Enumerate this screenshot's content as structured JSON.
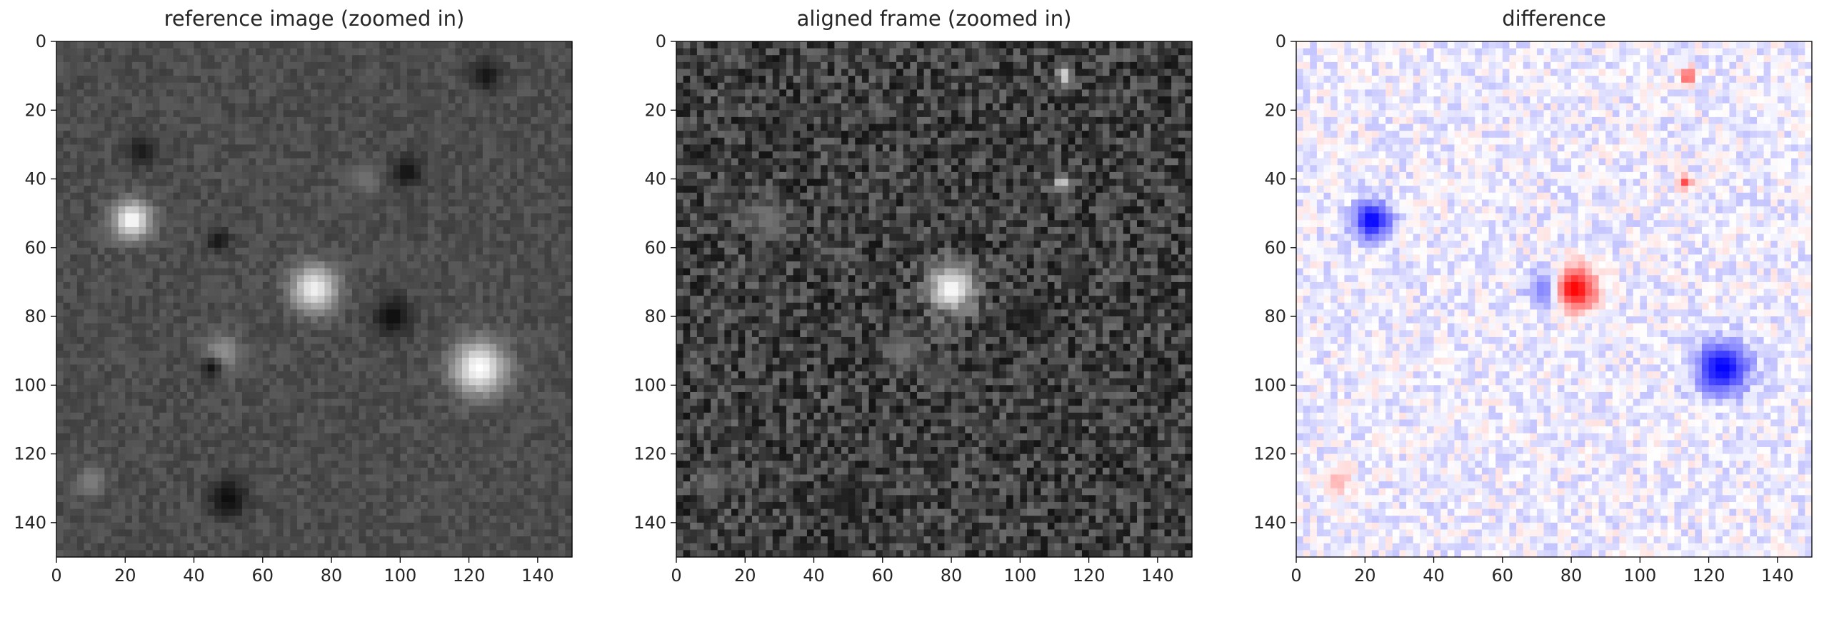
{
  "chart_data": [
    {
      "type": "heatmap",
      "title": "reference image  (zoomed in)",
      "colormap": "gray",
      "xlim": [
        0,
        150
      ],
      "ylim": [
        150,
        0
      ],
      "y_axis_inverted": true,
      "xticks": [
        "0",
        "20",
        "40",
        "60",
        "80",
        "100",
        "120",
        "140"
      ],
      "yticks": [
        "0",
        "20",
        "40",
        "60",
        "80",
        "100",
        "120",
        "140"
      ],
      "grid": false,
      "background_level": 0.3,
      "features": [
        {
          "x": 22,
          "y": 52,
          "r": 5,
          "level": 1.0
        },
        {
          "x": 75,
          "y": 72,
          "r": 6,
          "level": 0.95
        },
        {
          "x": 123,
          "y": 95,
          "r": 7,
          "level": 1.0
        },
        {
          "x": 48,
          "y": 91,
          "r": 5,
          "level": 0.6
        },
        {
          "x": 10,
          "y": 128,
          "r": 4,
          "level": 0.5
        },
        {
          "x": 90,
          "y": 40,
          "r": 4,
          "level": 0.45
        },
        {
          "x": 102,
          "y": 38,
          "r": 4,
          "level": 0.07
        },
        {
          "x": 98,
          "y": 80,
          "r": 5,
          "level": 0.05
        },
        {
          "x": 50,
          "y": 133,
          "r": 5,
          "level": 0.05
        },
        {
          "x": 45,
          "y": 95,
          "r": 3,
          "level": 0.08
        },
        {
          "x": 25,
          "y": 32,
          "r": 4,
          "level": 0.1
        },
        {
          "x": 125,
          "y": 10,
          "r": 4,
          "level": 0.08
        },
        {
          "x": 47,
          "y": 58,
          "r": 3,
          "level": 0.08
        }
      ]
    },
    {
      "type": "heatmap",
      "title": "aligned frame (zoomed in)",
      "colormap": "gray",
      "xlim": [
        0,
        150
      ],
      "ylim": [
        150,
        0
      ],
      "y_axis_inverted": true,
      "xticks": [
        "0",
        "20",
        "40",
        "60",
        "80",
        "100",
        "120",
        "140"
      ],
      "yticks": [
        "0",
        "20",
        "40",
        "60",
        "80",
        "100",
        "120",
        "140"
      ],
      "grid": false,
      "background_level": 0.25,
      "features": [
        {
          "x": 80,
          "y": 72,
          "r": 6,
          "level": 1.0
        },
        {
          "x": 113,
          "y": 10,
          "r": 2,
          "level": 0.9
        },
        {
          "x": 112,
          "y": 41,
          "r": 2,
          "level": 0.85
        },
        {
          "x": 27,
          "y": 52,
          "r": 5,
          "level": 0.45
        },
        {
          "x": 66,
          "y": 90,
          "r": 5,
          "level": 0.45
        },
        {
          "x": 10,
          "y": 128,
          "r": 4,
          "level": 0.45
        },
        {
          "x": 103,
          "y": 80,
          "r": 5,
          "level": 0.1
        },
        {
          "x": 50,
          "y": 133,
          "r": 5,
          "level": 0.12
        }
      ]
    },
    {
      "type": "heatmap",
      "title": "difference",
      "colormap": "bwr",
      "xlim": [
        0,
        150
      ],
      "ylim": [
        150,
        0
      ],
      "y_axis_inverted": true,
      "xticks": [
        "0",
        "20",
        "40",
        "60",
        "80",
        "100",
        "120",
        "140"
      ],
      "yticks": [
        "0",
        "20",
        "40",
        "60",
        "80",
        "100",
        "120",
        "140"
      ],
      "grid": false,
      "background_level": -0.06,
      "features": [
        {
          "x": 22,
          "y": 52,
          "r": 5,
          "level": -1.0
        },
        {
          "x": 74,
          "y": 72,
          "r": 5,
          "level": -0.9
        },
        {
          "x": 81,
          "y": 72,
          "r": 6,
          "level": 1.0
        },
        {
          "x": 124,
          "y": 95,
          "r": 7,
          "level": -1.0
        },
        {
          "x": 114,
          "y": 10,
          "r": 2,
          "level": 0.8
        },
        {
          "x": 113,
          "y": 41,
          "r": 2,
          "level": 0.7
        },
        {
          "x": 12,
          "y": 128,
          "r": 4,
          "level": 0.3
        }
      ]
    }
  ]
}
